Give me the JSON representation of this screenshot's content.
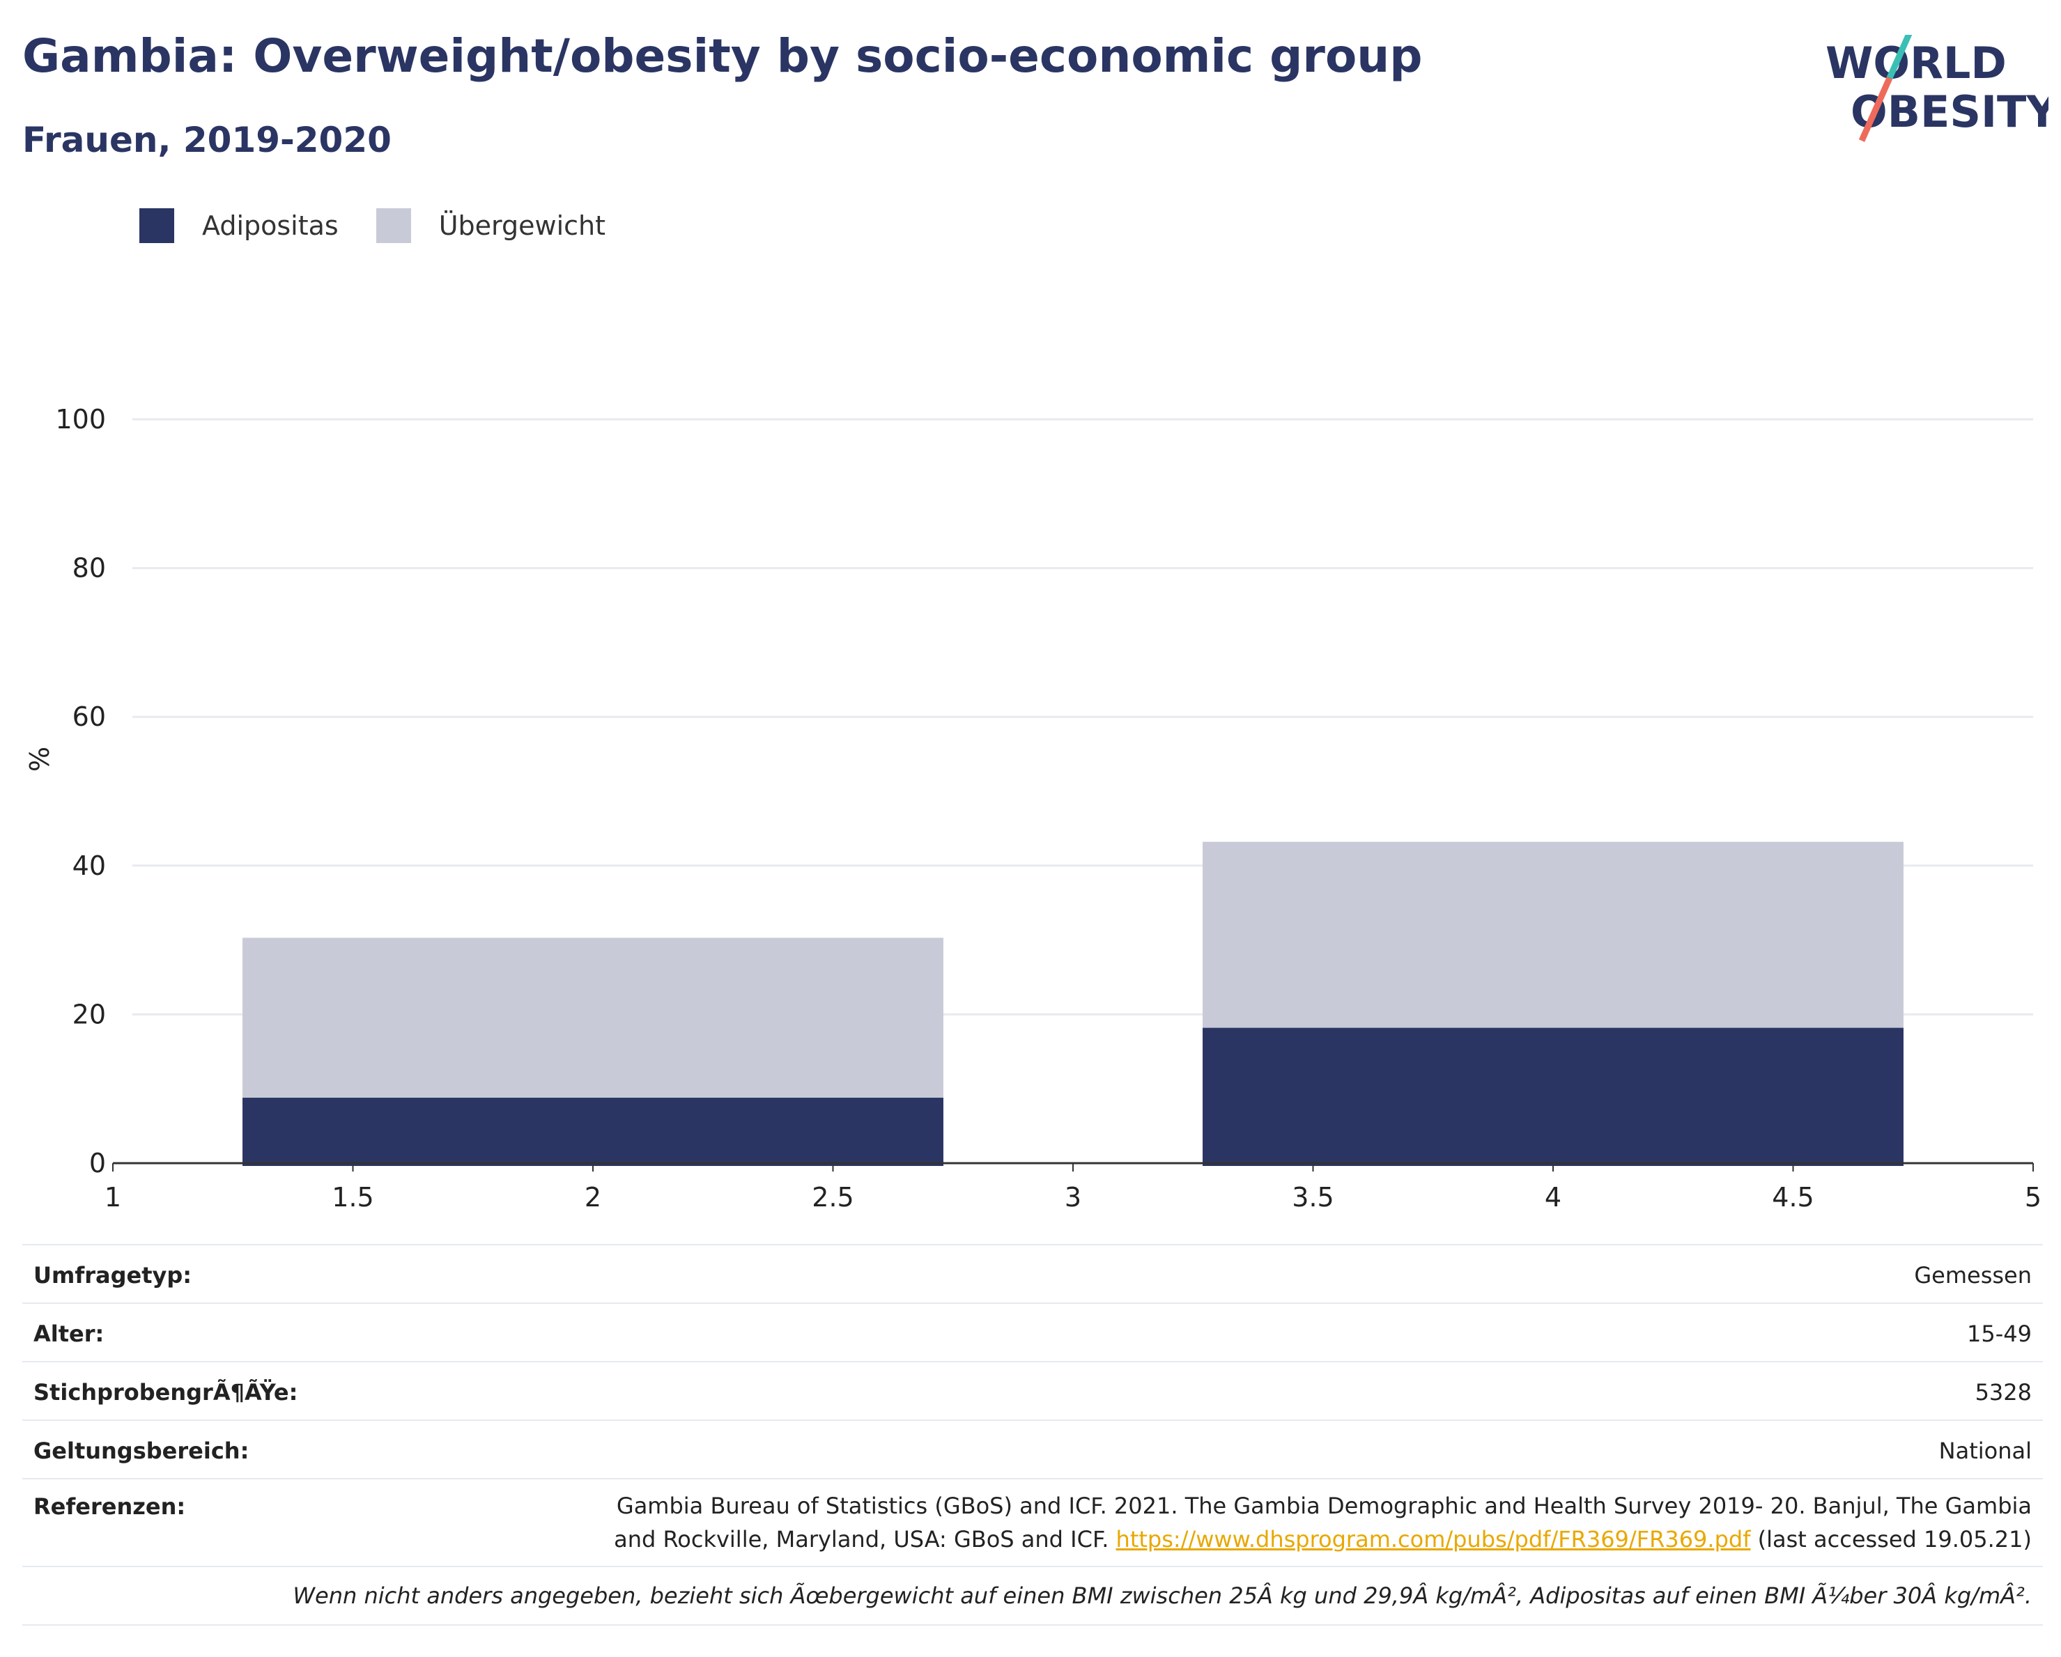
{
  "header": {
    "title": "Gambia: Overweight/obesity by socio-economic group",
    "subtitle": "Frauen, 2019-2020"
  },
  "logo": {
    "line1": "WORLD",
    "line2": "OBESITY",
    "accent_teal": "#3bbfb4",
    "accent_coral": "#ee6b5b",
    "navy": "#2a3563"
  },
  "legend": [
    {
      "label": "Adipositas",
      "color": "#2a3563"
    },
    {
      "label": "Übergewicht",
      "color": "#c8cbd7"
    }
  ],
  "chart_data": {
    "type": "bar",
    "stacked": true,
    "ylabel": "%",
    "xlim": [
      1,
      5
    ],
    "ylim": [
      0,
      100
    ],
    "xticks": [
      "1",
      "1.5",
      "2",
      "2.5",
      "3",
      "3.5",
      "4",
      "4.5",
      "5"
    ],
    "yticks": [
      "0",
      "20",
      "40",
      "60",
      "80",
      "100"
    ],
    "grid": true,
    "bars": [
      {
        "x_start": 1.27,
        "x_end": 2.73,
        "adipositas": 8.8,
        "uebergewicht": 21.5
      },
      {
        "x_start": 3.27,
        "x_end": 4.73,
        "adipositas": 18.2,
        "uebergewicht": 25.0
      }
    ],
    "series": [
      {
        "name": "Adipositas",
        "color": "#2a3563"
      },
      {
        "name": "Übergewicht",
        "color": "#c8cbd7"
      }
    ]
  },
  "info": {
    "survey_type": {
      "label": "Umfragetyp:",
      "value": "Gemessen"
    },
    "age": {
      "label": "Alter:",
      "value": "15-49"
    },
    "sample": {
      "label": "StichprobengrÃ¶ÃŸe:",
      "value": "5328"
    },
    "scope": {
      "label": "Geltungsbereich:",
      "value": "National"
    },
    "references": {
      "label": "Referenzen:",
      "text_before": "Gambia Bureau of Statistics (GBoS) and ICF. 2021. The Gambia Demographic and Health Survey 2019- 20. Banjul, The Gambia and Rockville, Maryland, USA: GBoS and ICF. ",
      "link": "https://www.dhsprogram.com/pubs/pdf/FR369/FR369.pdf",
      "text_after": " (last accessed 19.05.21)"
    },
    "note": "Wenn nicht anders angegeben, bezieht sich Ãœbergewicht auf einen BMI zwischen 25Â kg und 29,9Â kg/mÂ², Adipositas auf einen BMI Ã¼ber 30Â kg/mÂ²."
  }
}
